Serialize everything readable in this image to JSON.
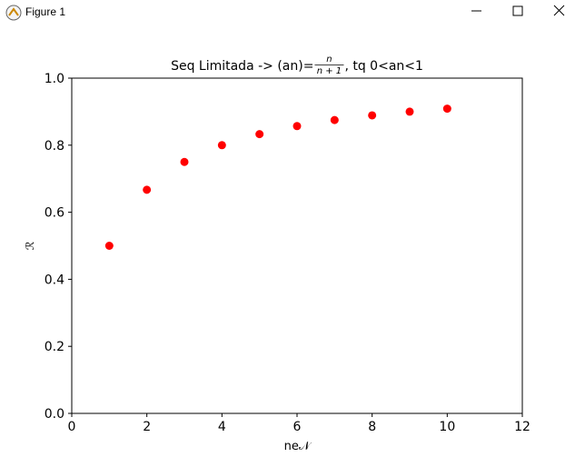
{
  "window": {
    "title": "Figure 1"
  },
  "chart_data": {
    "type": "scatter",
    "title": {
      "text": "Seq Limitada -> (an)=",
      "numerator": "n",
      "denominator": "n + 1",
      "suffix": ", tq 0<an<1"
    },
    "x_label": "ne𝒩",
    "y_label": "ℛ",
    "x": [
      1,
      2,
      3,
      4,
      5,
      6,
      7,
      8,
      9,
      10
    ],
    "values": [
      0.5,
      0.667,
      0.75,
      0.8,
      0.833,
      0.857,
      0.875,
      0.889,
      0.9,
      0.909
    ],
    "color": "#ff0000",
    "xlim": [
      0,
      12
    ],
    "xticks": [
      0,
      2,
      4,
      6,
      8,
      10,
      12
    ],
    "ylim": [
      0,
      1
    ],
    "yticks": [
      {
        "value": 0,
        "label": "0.0"
      },
      0.2,
      0.4,
      0.6,
      0.8,
      {
        "value": 1,
        "label": "1.0"
      }
    ],
    "grid": false
  }
}
